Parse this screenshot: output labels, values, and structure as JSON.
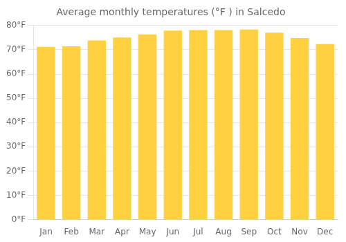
{
  "chart_data": {
    "type": "bar",
    "title": "Average monthly temperatures (°F ) in Salcedo",
    "categories": [
      "Jan",
      "Feb",
      "Mar",
      "Apr",
      "May",
      "Jun",
      "Jul",
      "Aug",
      "Sep",
      "Oct",
      "Nov",
      "Dec"
    ],
    "values": [
      71.2,
      71.4,
      73.8,
      75.0,
      76.3,
      77.9,
      78.1,
      78.1,
      78.3,
      77.0,
      74.8,
      72.3
    ],
    "color": "#FFD040",
    "ylim": [
      0,
      80
    ],
    "yticks": [
      {
        "value": 0,
        "label": "0°F"
      },
      {
        "value": 10,
        "label": "10°F"
      },
      {
        "value": 20,
        "label": "20°F"
      },
      {
        "value": 30,
        "label": "30°F"
      },
      {
        "value": 40,
        "label": "40°F"
      },
      {
        "value": 50,
        "label": "50°F"
      },
      {
        "value": 60,
        "label": "60°F"
      },
      {
        "value": 70,
        "label": "70°F"
      },
      {
        "value": 80,
        "label": "80°F"
      }
    ],
    "grid": true
  }
}
